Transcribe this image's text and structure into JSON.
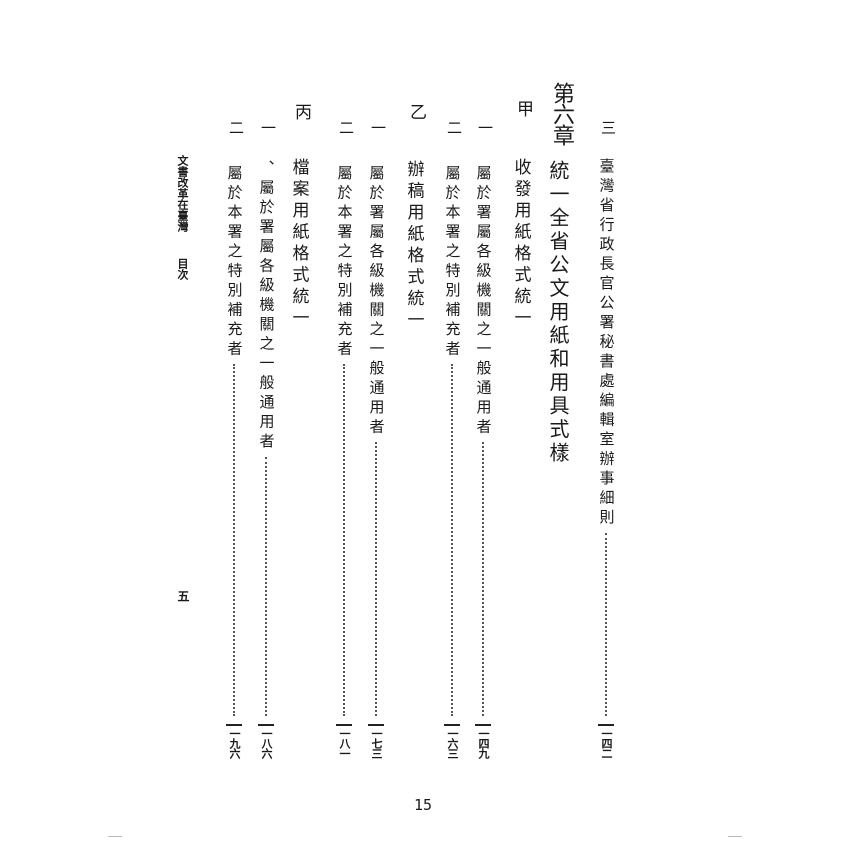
{
  "toc": {
    "entries": [
      {
        "marker": "三",
        "title": "臺灣省行政長官公署秘書處編輯室辦事細則",
        "page": "一四二"
      },
      {
        "marker": "第六章",
        "title": "統一全省公文用紙和用具式樣"
      },
      {
        "marker": "甲",
        "title": "收發用紙格式統一"
      },
      {
        "marker": "一",
        "title": "屬於署屬各級機關之一般通用者",
        "page": "一四九"
      },
      {
        "marker": "二",
        "title": "屬於本署之特別補充者",
        "page": "一六三"
      },
      {
        "marker": "乙",
        "title": "辦稿用紙格式統一"
      },
      {
        "marker": "一",
        "title": "屬於署屬各級機關之一般通用者",
        "page": "一七三"
      },
      {
        "marker": "二",
        "title": "屬於本署之特別補充者",
        "page": "一八一"
      },
      {
        "marker": "丙",
        "title": "檔案用紙格式統一"
      },
      {
        "marker": "一",
        "title": "、屬於署屬各級機關之一般通用者",
        "page": "一八六"
      },
      {
        "marker": "二",
        "title": "屬於本署之特別補充者",
        "page": "一九六"
      }
    ]
  },
  "running_header": {
    "book_title": "文書改革在臺灣",
    "section": "目次",
    "folio": "五"
  },
  "page_number": "15"
}
